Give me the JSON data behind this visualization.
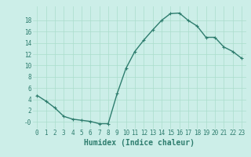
{
  "x": [
    0,
    1,
    2,
    3,
    4,
    5,
    6,
    7,
    8,
    9,
    10,
    11,
    12,
    13,
    14,
    15,
    16,
    17,
    18,
    19,
    20,
    21,
    22,
    23
  ],
  "y": [
    4.7,
    3.7,
    2.5,
    1.0,
    0.5,
    0.3,
    0.1,
    -0.3,
    -0.3,
    5.0,
    9.5,
    12.5,
    14.5,
    16.3,
    18.0,
    19.2,
    19.3,
    18.0,
    17.0,
    15.0,
    15.0,
    13.3,
    12.5,
    11.3
  ],
  "line_color": "#2e7d6e",
  "marker": "+",
  "marker_size": 3,
  "linewidth": 1.0,
  "xlabel": "Humidex (Indice chaleur)",
  "xlabel_fontsize": 7,
  "xtick_labels": [
    "0",
    "1",
    "2",
    "3",
    "4",
    "5",
    "6",
    "7",
    "8",
    "9",
    "10",
    "11",
    "12",
    "13",
    "14",
    "15",
    "16",
    "17",
    "18",
    "19",
    "20",
    "21",
    "22",
    "23"
  ],
  "ytick_values": [
    0,
    2,
    4,
    6,
    8,
    10,
    12,
    14,
    16,
    18
  ],
  "ytick_labels": [
    "-0",
    "2",
    "4",
    "6",
    "8",
    "10",
    "12",
    "14",
    "16",
    "18"
  ],
  "ylim": [
    -1.2,
    20.5
  ],
  "xlim": [
    -0.5,
    23.5
  ],
  "bg_color": "#cceee8",
  "grid_color": "#aaddcc",
  "tick_fontsize": 5.5,
  "fig_width": 3.2,
  "fig_height": 2.0,
  "dpi": 100
}
